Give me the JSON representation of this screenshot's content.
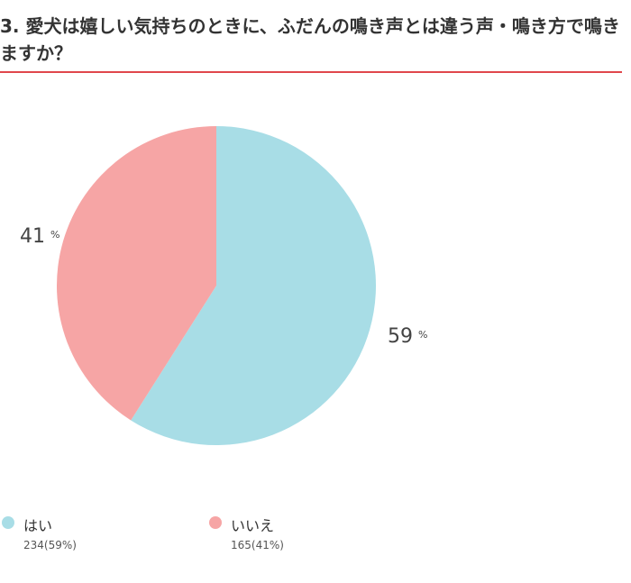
{
  "question": {
    "line1": "3. 愛犬は嬉しい気持ちのときに、ふだんの鳴き声とは違う声・鳴き方で鳴き",
    "line2": "ますか？"
  },
  "colors": {
    "accent_rule": "#e0474c",
    "yes": "#a8dde6",
    "no": "#f6a5a5"
  },
  "chart_data": {
    "type": "pie",
    "slices": [
      {
        "label": "はい",
        "count": 234,
        "percent": 59,
        "percent_label": "59",
        "count_label": "234(59%)",
        "color": "#a8dde6"
      },
      {
        "label": "いいえ",
        "count": 165,
        "percent": 41,
        "percent_label": "41",
        "count_label": "165(41%)",
        "color": "#f6a5a5"
      }
    ],
    "percent_unit": "%",
    "start": "12 o'clock",
    "direction": "clockwise",
    "legend_position": "bottom"
  }
}
